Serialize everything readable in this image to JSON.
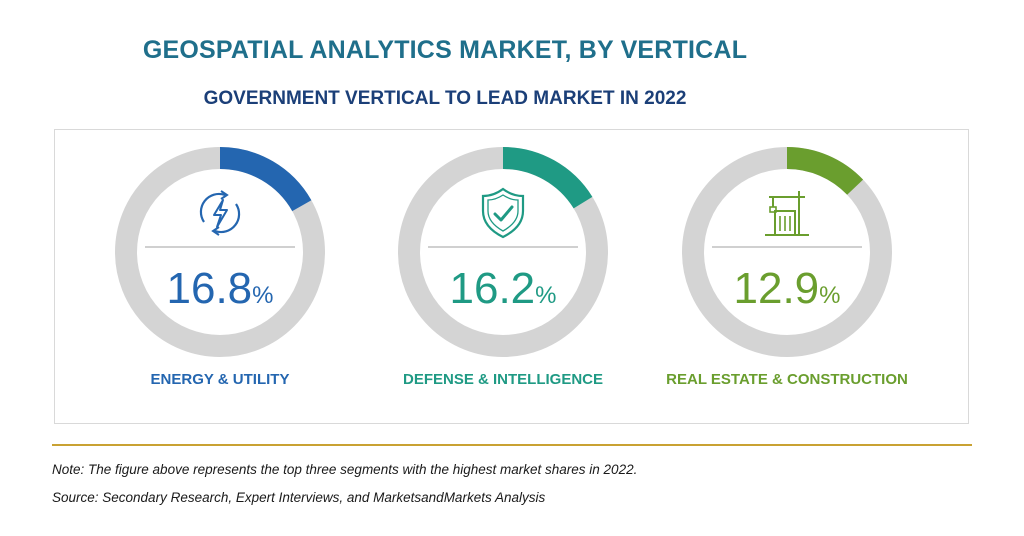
{
  "header": {
    "title": "GEOSPATIAL ANALYTICS MARKET, BY VERTICAL",
    "subtitle": "GOVERNMENT VERTICAL TO LEAD MARKET IN 2022"
  },
  "chart_data": {
    "type": "pie",
    "title": "GEOSPATIAL ANALYTICS MARKET, BY VERTICAL",
    "subtitle": "GOVERNMENT VERTICAL TO LEAD MARKET IN 2022",
    "unit": "%",
    "track_color": "#d4d4d4",
    "segments": [
      {
        "name": "ENERGY & UTILITY",
        "value": 16.8,
        "display": "16.8",
        "color": "#2466b0",
        "icon": "energy-icon"
      },
      {
        "name": "DEFENSE & INTELLIGENCE",
        "value": 16.2,
        "display": "16.2",
        "color": "#1f9a84",
        "icon": "shield-check-icon"
      },
      {
        "name": "REAL ESTATE & CONSTRUCTION",
        "value": 12.9,
        "display": "12.9",
        "color": "#6a9e2e",
        "icon": "building-crane-icon"
      }
    ]
  },
  "footer": {
    "note": "Note: The figure above represents the top three segments with the highest market shares in 2022.",
    "source": "Source: Secondary Research, Expert Interviews, and MarketsandMarkets Analysis"
  }
}
